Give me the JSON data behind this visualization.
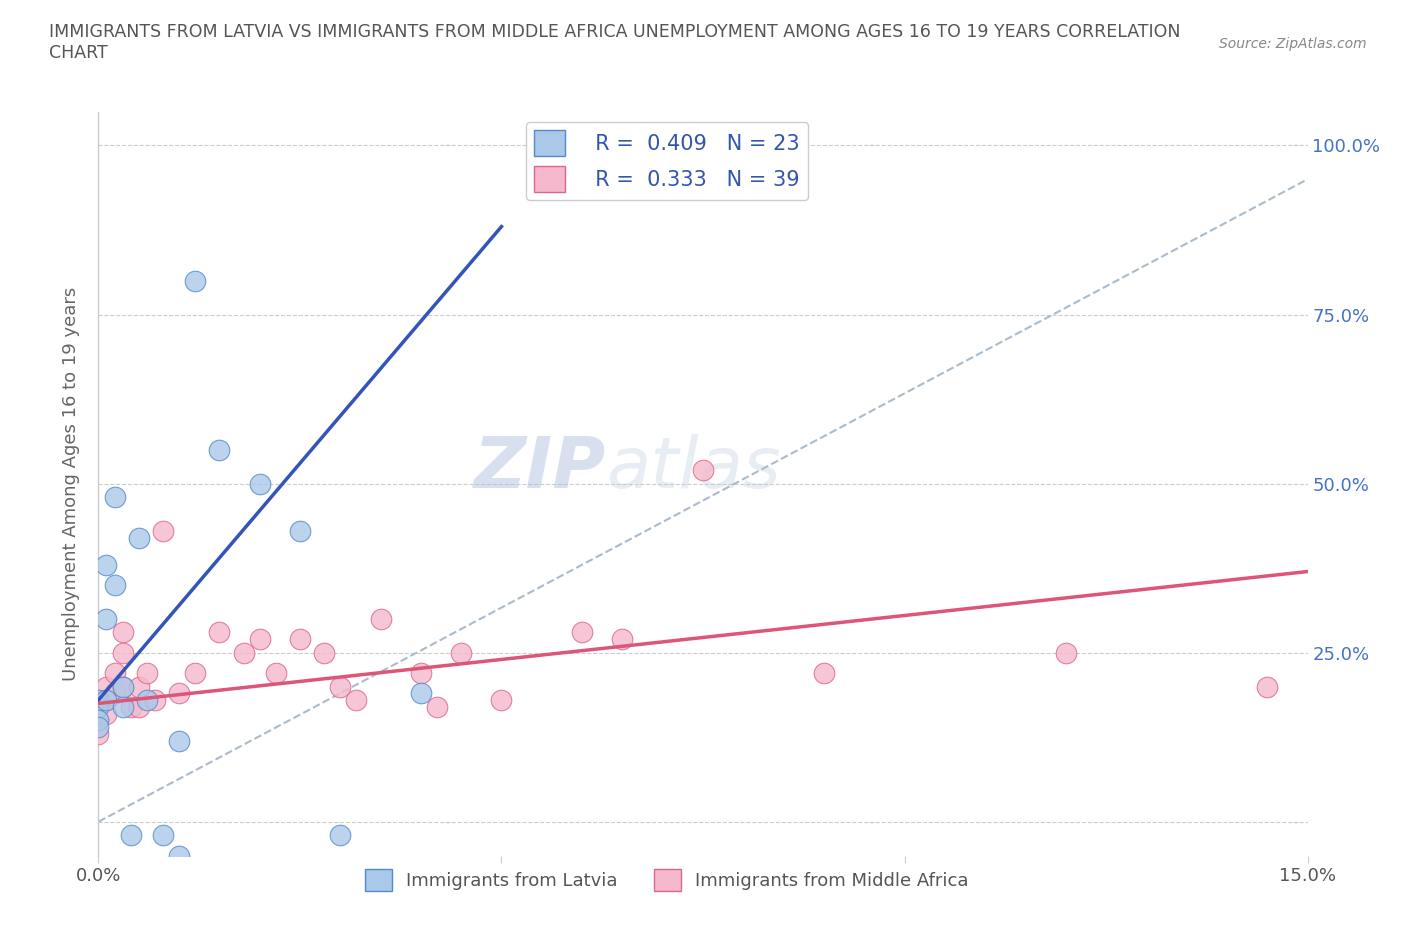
{
  "title": "IMMIGRANTS FROM LATVIA VS IMMIGRANTS FROM MIDDLE AFRICA UNEMPLOYMENT AMONG AGES 16 TO 19 YEARS CORRELATION\nCHART",
  "source": "Source: ZipAtlas.com",
  "ylabel": "Unemployment Among Ages 16 to 19 years",
  "xlim": [
    0.0,
    0.15
  ],
  "ylim": [
    -0.05,
    1.05
  ],
  "ytick_positions": [
    0.0,
    0.25,
    0.5,
    0.75,
    1.0
  ],
  "ytick_labels": [
    "",
    "25.0%",
    "50.0%",
    "75.0%",
    "100.0%"
  ],
  "watermark_zip": "ZIP",
  "watermark_atlas": "atlas",
  "latvia_color": "#aac8e8",
  "latvia_edge_color": "#5588cc",
  "middle_africa_color": "#f5b8cc",
  "middle_africa_edge_color": "#dd6688",
  "latvia_line_color": "#3355bb",
  "middle_africa_line_color": "#dd5577",
  "refline_color": "#aabbcc",
  "R_latvia": 0.409,
  "N_latvia": 23,
  "R_middle_africa": 0.333,
  "N_middle_africa": 39,
  "latvia_x": [
    0.0,
    0.0,
    0.0,
    0.0,
    0.001,
    0.001,
    0.001,
    0.002,
    0.002,
    0.003,
    0.003,
    0.004,
    0.005,
    0.006,
    0.008,
    0.01,
    0.01,
    0.012,
    0.015,
    0.02,
    0.025,
    0.03,
    0.04
  ],
  "latvia_y": [
    0.18,
    0.17,
    0.15,
    0.14,
    0.38,
    0.3,
    0.18,
    0.48,
    0.35,
    0.2,
    0.17,
    -0.02,
    0.42,
    0.18,
    -0.02,
    -0.05,
    0.12,
    0.8,
    0.55,
    0.5,
    0.43,
    -0.02,
    0.19
  ],
  "middle_africa_x": [
    0.0,
    0.0,
    0.0,
    0.0,
    0.001,
    0.001,
    0.001,
    0.002,
    0.002,
    0.003,
    0.003,
    0.003,
    0.004,
    0.005,
    0.005,
    0.006,
    0.007,
    0.008,
    0.01,
    0.012,
    0.015,
    0.018,
    0.02,
    0.022,
    0.025,
    0.028,
    0.03,
    0.032,
    0.035,
    0.04,
    0.042,
    0.045,
    0.05,
    0.06,
    0.065,
    0.075,
    0.09,
    0.12,
    0.145
  ],
  "middle_africa_y": [
    0.18,
    0.17,
    0.15,
    0.13,
    0.2,
    0.18,
    0.16,
    0.22,
    0.19,
    0.28,
    0.25,
    0.2,
    0.17,
    0.2,
    0.17,
    0.22,
    0.18,
    0.43,
    0.19,
    0.22,
    0.28,
    0.25,
    0.27,
    0.22,
    0.27,
    0.25,
    0.2,
    0.18,
    0.3,
    0.22,
    0.17,
    0.25,
    0.18,
    0.28,
    0.27,
    0.52,
    0.22,
    0.25,
    0.2
  ],
  "dot_size": 220,
  "background_color": "#ffffff",
  "grid_color": "#cccccc",
  "latvia_line_x0": 0.0,
  "latvia_line_y0": 0.18,
  "latvia_line_x1": 0.05,
  "latvia_line_y1": 0.88,
  "middle_africa_line_x0": 0.0,
  "middle_africa_line_y0": 0.175,
  "middle_africa_line_x1": 0.15,
  "middle_africa_line_y1": 0.37,
  "refline_x0": 0.0,
  "refline_y0": 0.0,
  "refline_x1": 0.15,
  "refline_y1": 0.95
}
